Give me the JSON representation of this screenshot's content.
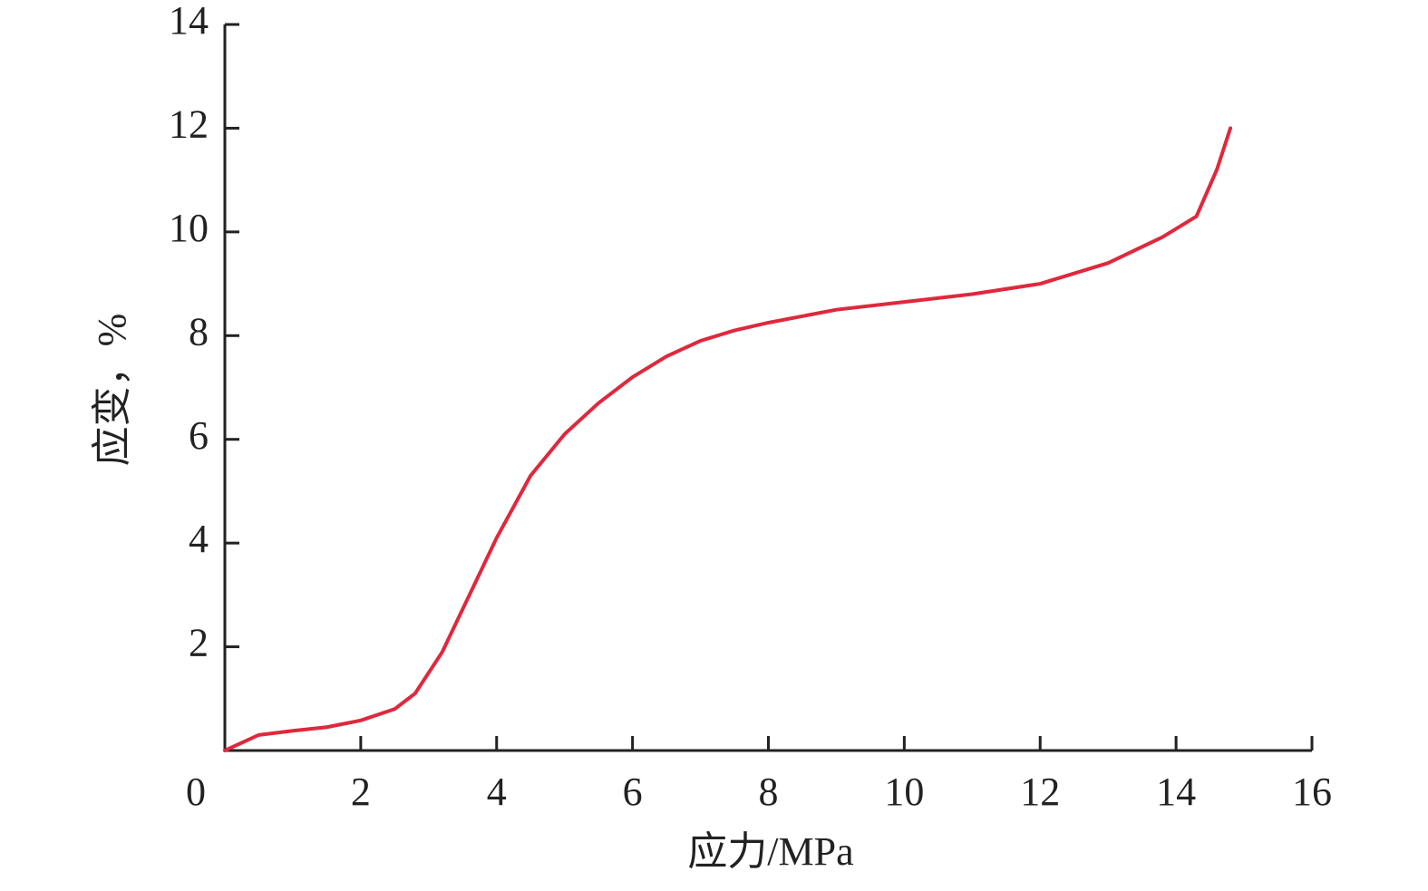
{
  "chart_data": {
    "type": "line",
    "x_label": "应力/MPa",
    "y_label": "应变，%",
    "x": [
      0,
      0.5,
      1,
      1.5,
      2,
      2.5,
      2.8,
      3.2,
      3.6,
      4,
      4.5,
      5,
      5.5,
      6,
      6.5,
      7,
      7.5,
      8,
      9,
      10,
      11,
      12,
      13,
      13.8,
      14.3,
      14.6,
      14.8
    ],
    "series": [
      {
        "color": "#e0283c",
        "values": [
          0,
          0.3,
          0.38,
          0.45,
          0.58,
          0.8,
          1.1,
          1.9,
          3.0,
          4.1,
          5.3,
          6.1,
          6.7,
          7.2,
          7.6,
          7.9,
          8.1,
          8.25,
          8.5,
          8.65,
          8.8,
          9.0,
          9.4,
          9.9,
          10.3,
          11.2,
          12.0
        ]
      }
    ],
    "xlim": [
      0,
      16
    ],
    "xticks": [
      0,
      2,
      4,
      6,
      8,
      10,
      12,
      14,
      16
    ],
    "ylim": [
      0,
      14
    ],
    "yticks": [
      2,
      4,
      6,
      8,
      10,
      12,
      14
    ],
    "grid": false
  }
}
